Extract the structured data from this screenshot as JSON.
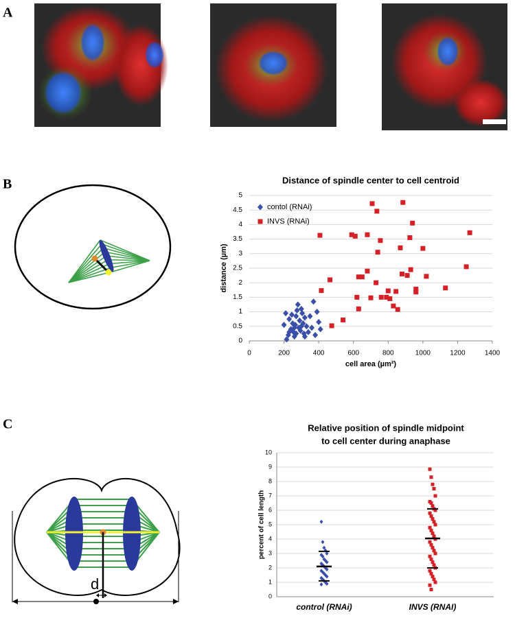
{
  "panels": [
    "A",
    "B",
    "C"
  ],
  "diagram_label": "d",
  "chart_data": [
    {
      "type": "scatter",
      "title": "Distance of spindle center to cell centroid",
      "x_label": "cell area (µm²)",
      "y_label": "distance  (µm)",
      "xlim": [
        0,
        1400
      ],
      "xticks": [
        0,
        200,
        400,
        600,
        800,
        1000,
        1200,
        1400
      ],
      "ylim": [
        0,
        5
      ],
      "yticks": [
        0,
        0.5,
        1,
        1.5,
        2,
        2.5,
        3,
        3.5,
        4,
        4.5,
        5
      ],
      "grid": true,
      "legend": "upper left",
      "series": [
        {
          "name": "contol (RNAi)",
          "color": "#3a4fa8",
          "marker": "diamond",
          "x": [
            200,
            210,
            215,
            225,
            230,
            240,
            245,
            250,
            255,
            260,
            265,
            270,
            275,
            280,
            285,
            290,
            295,
            300,
            305,
            310,
            315,
            320,
            330,
            340,
            350,
            360,
            370,
            380,
            390,
            400,
            410,
            230,
            260,
            300,
            320,
            270
          ],
          "values": [
            0.55,
            0.95,
            0.05,
            0.2,
            0.75,
            0.4,
            0.9,
            0.6,
            0.3,
            0.15,
            0.55,
            0.85,
            1.05,
            1.25,
            0.45,
            0.7,
            0.35,
            1.1,
            0.95,
            0.6,
            0.25,
            0.8,
            0.5,
            0.3,
            0.85,
            0.45,
            1.35,
            0.2,
            1.0,
            0.65,
            0.4,
            0.3,
            0.45,
            0.5,
            0.15,
            0.25
          ]
        },
        {
          "name": "INVS (RNAi)",
          "color": "#d42027",
          "marker": "square",
          "x": [
            708,
            885,
            735,
            407,
            590,
            610,
            680,
            755,
            940,
            1270,
            925,
            1000,
            870,
            740,
            415,
            465,
            475,
            540,
            620,
            630,
            650,
            680,
            700,
            760,
            800,
            810,
            830,
            845,
            855,
            880,
            910,
            930,
            960,
            960,
            1020,
            1130,
            1250,
            630,
            730,
            790
          ],
          "values": [
            4.72,
            4.76,
            4.46,
            3.63,
            3.65,
            3.6,
            3.65,
            3.45,
            4.05,
            3.72,
            3.55,
            3.18,
            3.2,
            3.05,
            1.73,
            2.1,
            0.52,
            0.72,
            1.5,
            2.2,
            2.2,
            2.4,
            1.48,
            1.5,
            1.72,
            1.45,
            1.2,
            1.7,
            1.08,
            2.3,
            2.25,
            2.45,
            1.68,
            1.78,
            2.22,
            1.82,
            2.55,
            1.1,
            2.0,
            1.5
          ]
        }
      ]
    },
    {
      "type": "strip",
      "title": [
        "Relative position of spindle midpoint",
        "to cell center during anaphase"
      ],
      "y_label": "percent of cell length",
      "ylim": [
        0,
        10
      ],
      "yticks": [
        0,
        1,
        2,
        3,
        4,
        5,
        6,
        7,
        8,
        9,
        10
      ],
      "grid": true,
      "categories": [
        "control (RNAi)",
        "INVS (RNAI)"
      ],
      "groups": [
        {
          "color": "#3a4fa8",
          "mean": 2.1,
          "sd_low": 1.1,
          "sd_high": 3.15,
          "values": [
            5.2,
            3.8,
            3.4,
            3.2,
            3.0,
            2.9,
            2.8,
            2.6,
            2.5,
            2.4,
            2.3,
            2.2,
            2.1,
            2.0,
            1.9,
            1.8,
            1.7,
            1.6,
            1.5,
            1.4,
            1.3,
            1.2,
            1.1,
            1.0,
            0.9,
            0.85
          ]
        },
        {
          "color": "#d42027",
          "mean": 4.05,
          "sd_low": 2.0,
          "sd_high": 6.1,
          "values": [
            8.85,
            8.3,
            7.8,
            7.5,
            7.0,
            6.6,
            6.5,
            6.3,
            6.1,
            6.0,
            5.8,
            5.6,
            5.4,
            5.2,
            5.0,
            4.8,
            4.6,
            4.4,
            4.2,
            4.0,
            3.8,
            3.6,
            3.4,
            3.2,
            3.0,
            2.8,
            2.6,
            2.4,
            2.2,
            2.0,
            1.8,
            1.6,
            1.4,
            1.2,
            1.0,
            0.8,
            0.5
          ]
        }
      ]
    }
  ]
}
